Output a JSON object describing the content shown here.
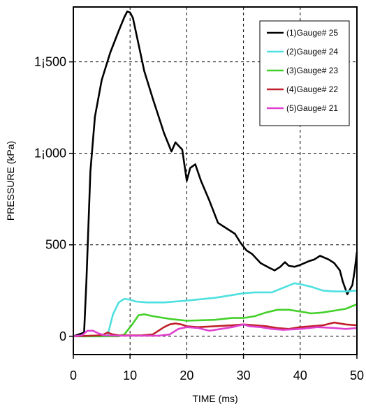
{
  "chart_data": {
    "type": "line",
    "title": "",
    "xlabel": "TIME (ms)",
    "ylabel": "PRESSURE (kPa)",
    "xlim": [
      0,
      50
    ],
    "ylim": [
      -100,
      1800
    ],
    "xticks": [
      0,
      10,
      20,
      30,
      40,
      50
    ],
    "xtick_labels": [
      "0",
      "10",
      "20",
      "30",
      "40",
      "50"
    ],
    "yticks": [
      0,
      500,
      1000,
      1500
    ],
    "ytick_labels": [
      "0",
      "500",
      "1¡000",
      "1¡500"
    ],
    "grid": true,
    "legend_position": "top-right",
    "series": [
      {
        "name": "(1)Gauge# 25",
        "color": "#000000",
        "x": [
          0,
          1.9,
          2.3,
          3,
          3.8,
          5,
          6.5,
          8,
          9,
          9.5,
          10,
          10.5,
          11.2,
          12.5,
          14,
          16,
          17.3,
          18,
          19.2,
          20,
          20.6,
          21.5,
          22.5,
          24,
          25.5,
          27,
          28.5,
          29.5,
          30.5,
          31.5,
          33,
          34.5,
          35.5,
          36.5,
          37.3,
          38,
          39,
          40,
          41.5,
          42.5,
          43.5,
          45,
          46,
          47,
          47.5,
          48.3,
          49.2,
          49.6,
          50
        ],
        "y": [
          0,
          20,
          300,
          900,
          1200,
          1400,
          1550,
          1670,
          1745,
          1775,
          1770,
          1740,
          1640,
          1450,
          1300,
          1110,
          1010,
          1060,
          1020,
          850,
          920,
          940,
          850,
          740,
          620,
          590,
          560,
          510,
          470,
          450,
          400,
          375,
          360,
          380,
          405,
          385,
          380,
          390,
          410,
          420,
          440,
          420,
          400,
          360,
          300,
          230,
          280,
          360,
          460
        ]
      },
      {
        "name": "(2)Gauge# 24",
        "color": "#4ee0e0",
        "x": [
          0,
          4,
          6,
          7,
          8,
          9,
          10,
          11,
          13,
          16,
          20,
          25,
          30,
          32,
          35,
          37,
          39,
          40,
          42,
          44,
          46,
          48,
          50
        ],
        "y": [
          0,
          0,
          0,
          120,
          185,
          205,
          200,
          190,
          185,
          185,
          195,
          210,
          235,
          240,
          240,
          265,
          290,
          285,
          270,
          250,
          245,
          245,
          250
        ]
      },
      {
        "name": "(3)Gauge# 23",
        "color": "#44d02a",
        "x": [
          0,
          8,
          9,
          10.5,
          11.5,
          12.5,
          14,
          17,
          20,
          25,
          28,
          30,
          32,
          34,
          36,
          38,
          40,
          42,
          44,
          46,
          48,
          50
        ],
        "y": [
          0,
          0,
          10,
          70,
          115,
          120,
          110,
          95,
          85,
          90,
          100,
          100,
          110,
          130,
          145,
          145,
          135,
          125,
          130,
          140,
          150,
          175
        ]
      },
      {
        "name": "(4)Gauge# 22",
        "color": "#c0202a",
        "x": [
          0,
          5,
          6,
          7,
          8,
          10,
          12,
          14,
          16,
          17,
          18,
          19,
          20,
          22,
          25,
          28,
          30,
          32,
          34,
          36,
          38,
          40,
          42,
          44,
          46,
          48,
          50
        ],
        "y": [
          0,
          5,
          20,
          10,
          5,
          5,
          5,
          10,
          50,
          65,
          70,
          65,
          55,
          50,
          55,
          60,
          65,
          60,
          55,
          45,
          40,
          50,
          55,
          60,
          75,
          65,
          60
        ]
      },
      {
        "name": "(5)Gauge# 21",
        "color": "#e040d0",
        "x": [
          0,
          1.5,
          2.5,
          3.5,
          4.5,
          5.5,
          8,
          12,
          15,
          17,
          18.5,
          20,
          22,
          24,
          26,
          28,
          30,
          31,
          33,
          35,
          37,
          40,
          43,
          46,
          48,
          50
        ],
        "y": [
          0,
          5,
          30,
          30,
          15,
          5,
          3,
          3,
          3,
          10,
          40,
          50,
          45,
          30,
          40,
          50,
          65,
          55,
          50,
          40,
          35,
          40,
          50,
          45,
          40,
          45
        ]
      }
    ]
  }
}
